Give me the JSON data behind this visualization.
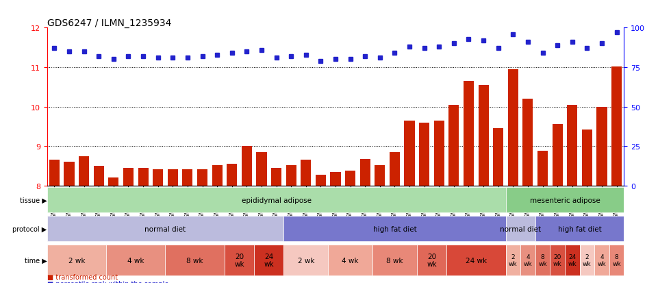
{
  "title": "GDS6247 / ILMN_1235934",
  "samples": [
    "GSM971546",
    "GSM971547",
    "GSM971548",
    "GSM971549",
    "GSM971550",
    "GSM971551",
    "GSM971552",
    "GSM971553",
    "GSM971554",
    "GSM971555",
    "GSM971556",
    "GSM971557",
    "GSM971558",
    "GSM971559",
    "GSM971560",
    "GSM971561",
    "GSM971562",
    "GSM971563",
    "GSM971564",
    "GSM971565",
    "GSM971566",
    "GSM971567",
    "GSM971568",
    "GSM971569",
    "GSM971570",
    "GSM971571",
    "GSM971572",
    "GSM971573",
    "GSM971574",
    "GSM971575",
    "GSM971576",
    "GSM971578",
    "GSM971579",
    "GSM971580",
    "GSM971581",
    "GSM971582",
    "GSM971583",
    "GSM971584",
    "GSM971585"
  ],
  "bar_values": [
    8.65,
    8.6,
    8.75,
    8.5,
    8.2,
    8.45,
    8.45,
    8.42,
    8.42,
    8.42,
    8.42,
    8.52,
    8.55,
    9.0,
    8.85,
    8.45,
    8.52,
    8.65,
    8.28,
    8.35,
    8.38,
    8.68,
    8.52,
    8.85,
    9.65,
    9.6,
    9.65,
    10.05,
    10.65,
    10.55,
    9.45,
    10.95,
    10.2,
    8.88,
    9.55,
    10.05,
    9.42,
    10.0,
    11.02
  ],
  "percentile_values": [
    87,
    85,
    85,
    82,
    80,
    82,
    82,
    81,
    81,
    81,
    82,
    83,
    84,
    85,
    86,
    81,
    82,
    83,
    79,
    80,
    80,
    82,
    81,
    84,
    88,
    87,
    88,
    90,
    93,
    92,
    87,
    96,
    91,
    84,
    89,
    91,
    87,
    90,
    97
  ],
  "ylim_left": [
    8.0,
    12.0
  ],
  "ylim_right": [
    0,
    100
  ],
  "yticks_left": [
    8,
    9,
    10,
    11,
    12
  ],
  "yticks_right": [
    0,
    25,
    50,
    75,
    100
  ],
  "bar_color": "#cc2200",
  "dot_color": "#2222cc",
  "tissue_groups": [
    {
      "label": "epididymal adipose",
      "start": 0,
      "end": 31,
      "color": "#aaddaa"
    },
    {
      "label": "mesenteric adipose",
      "start": 31,
      "end": 39,
      "color": "#88cc88"
    }
  ],
  "protocol_groups": [
    {
      "label": "normal diet",
      "start": 0,
      "end": 16,
      "color": "#bbbbdd"
    },
    {
      "label": "high fat diet",
      "start": 16,
      "end": 31,
      "color": "#7777cc"
    },
    {
      "label": "normal diet",
      "start": 31,
      "end": 33,
      "color": "#bbbbdd"
    },
    {
      "label": "high fat diet",
      "start": 33,
      "end": 39,
      "color": "#7777cc"
    }
  ],
  "time_groups": [
    {
      "label": "2 wk",
      "start": 0,
      "end": 4,
      "color": "#f0b0a0"
    },
    {
      "label": "4 wk",
      "start": 4,
      "end": 8,
      "color": "#e89080"
    },
    {
      "label": "8 wk",
      "start": 8,
      "end": 12,
      "color": "#e07060"
    },
    {
      "label": "20 wk",
      "start": 12,
      "end": 14,
      "color": "#d85040"
    },
    {
      "label": "24 wk",
      "start": 14,
      "end": 16,
      "color": "#cc3020"
    },
    {
      "label": "2 wk",
      "start": 16,
      "end": 19,
      "color": "#f5c8c0"
    },
    {
      "label": "4 wk",
      "start": 19,
      "end": 22,
      "color": "#f0a898"
    },
    {
      "label": "8 wk",
      "start": 22,
      "end": 25,
      "color": "#e88878"
    },
    {
      "label": "20 wk",
      "start": 25,
      "end": 27,
      "color": "#e06858"
    },
    {
      "label": "24 wk",
      "start": 27,
      "end": 31,
      "color": "#d84838"
    },
    {
      "label": "2 wk",
      "start": 31,
      "end": 32,
      "color": "#f0b0a0"
    },
    {
      "label": "4 wk",
      "start": 32,
      "end": 33,
      "color": "#e89080"
    },
    {
      "label": "8 wk",
      "start": 33,
      "end": 34,
      "color": "#e07060"
    },
    {
      "label": "20 wk",
      "start": 34,
      "end": 35,
      "color": "#d85040"
    },
    {
      "label": "24 wk",
      "start": 35,
      "end": 36,
      "color": "#cc3020"
    },
    {
      "label": "2 wk",
      "start": 36,
      "end": 37,
      "color": "#f5c8c0"
    },
    {
      "label": "4 wk",
      "start": 37,
      "end": 38,
      "color": "#f0a898"
    },
    {
      "label": "8 wk",
      "start": 38,
      "end": 39,
      "color": "#e88878"
    }
  ],
  "time_labels_short": {
    "2 wk": "2\nwk",
    "4 wk": "4\nwk",
    "8 wk": "8\nwk",
    "20 wk": "20\nwk",
    "24 wk": "24\nwk"
  }
}
